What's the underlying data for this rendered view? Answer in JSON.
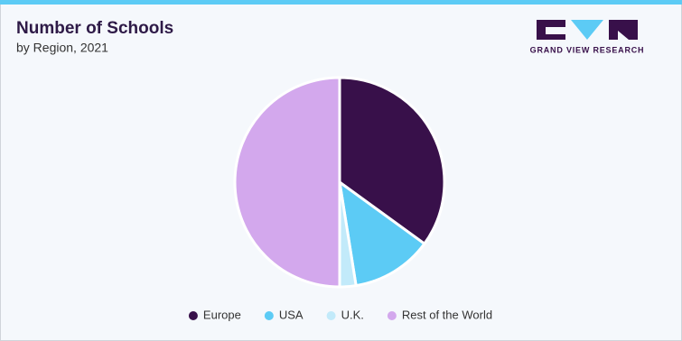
{
  "chart_data": {
    "type": "pie",
    "title": "Number of Schools",
    "subtitle": "by Region, 2021",
    "categories": [
      "Europe",
      "USA",
      "U.K.",
      "Rest of the World"
    ],
    "values": [
      35,
      12.5,
      2.5,
      50
    ],
    "colors": [
      "#38104a",
      "#5ccbf5",
      "#c2eafa",
      "#d3a8ed"
    ],
    "legend": "bottom"
  },
  "logo": {
    "text": "GRAND VIEW RESEARCH"
  }
}
